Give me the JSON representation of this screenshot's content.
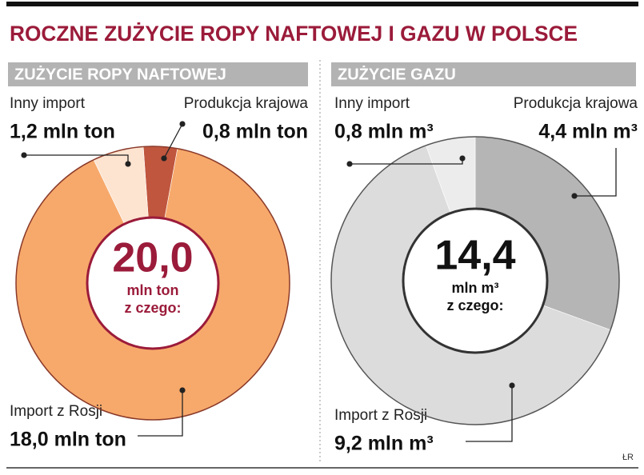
{
  "title": "ROCZNE ZUŻYCIE ROPY NAFTOWEJ I GAZU W POLSCE",
  "credit": "ŁR",
  "chart_data": [
    {
      "type": "pie",
      "donut": true,
      "subtitle": "ZUŻYCIE ROPY NAFTOWEJ",
      "categories": [
        "Produkcja krajowa",
        "Import z Rosji",
        "Inny import"
      ],
      "values": [
        0.8,
        18.0,
        1.2
      ],
      "value_labels": [
        "0,8 mln ton",
        "18,0 mln ton",
        "1,2 mln ton"
      ],
      "colors": [
        "#c0563e",
        "#f7a96b",
        "#fde4d0"
      ],
      "total": {
        "value": 20.0,
        "label": "20,0"
      },
      "total_unit": "mln ton",
      "total_note": "z czego:"
    },
    {
      "type": "pie",
      "donut": true,
      "subtitle": "ZUŻYCIE GAZU",
      "categories": [
        "Produkcja krajowa",
        "Import z Rosji",
        "Inny import"
      ],
      "values": [
        4.4,
        9.2,
        0.8
      ],
      "value_labels": [
        "4,4 mln m³",
        "9,2 mln m³",
        "0,8 mln m³"
      ],
      "colors": [
        "#b5b5b5",
        "#dcdcdc",
        "#ececec"
      ],
      "total": {
        "value": 14.4,
        "label": "14,4"
      },
      "total_unit": "mln m³",
      "total_note": "z czego:"
    }
  ]
}
